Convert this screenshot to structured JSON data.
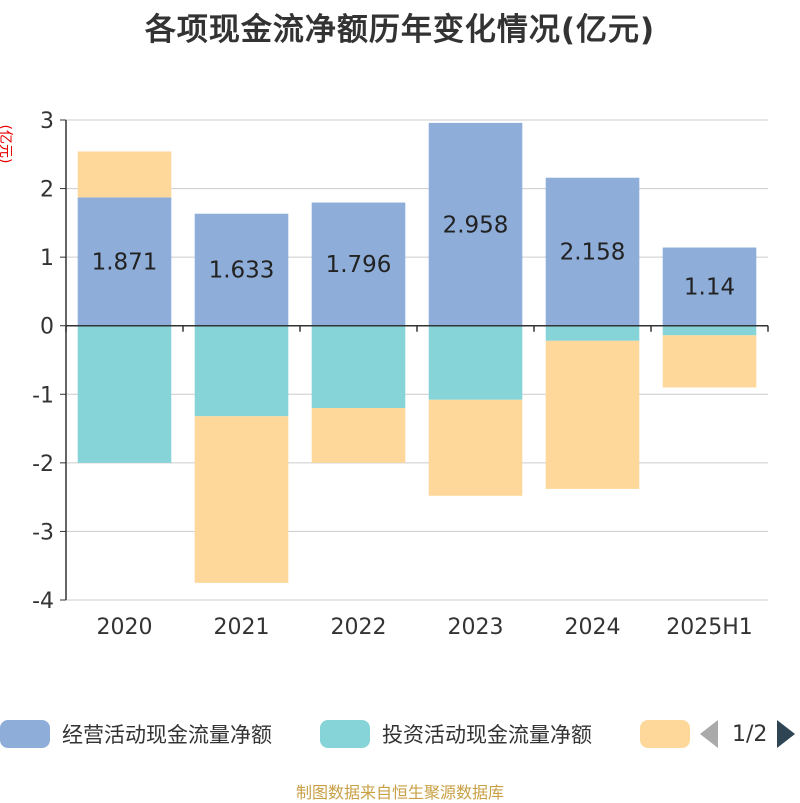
{
  "title": "各项现金流净额历年变化情况(亿元)",
  "unit_label": "(亿元)",
  "source": "制图数据来自恒生聚源数据库",
  "legend": {
    "items": [
      {
        "label": "经营活动现金流量净额",
        "color": "#8eadd9"
      },
      {
        "label": "投资活动现金流量净额",
        "color": "#86d4d8"
      },
      {
        "label": "",
        "color": "#fdd89a"
      }
    ],
    "page_text": "1/2"
  },
  "chart_data": {
    "type": "bar",
    "stacked": true,
    "categories": [
      "2020",
      "2021",
      "2022",
      "2023",
      "2024",
      "2025H1"
    ],
    "ylim": [
      -4,
      3
    ],
    "yticks": [
      3,
      2,
      1,
      0,
      -1,
      -2,
      -3,
      -4
    ],
    "grid": true,
    "legend_position": "bottom",
    "series": [
      {
        "name": "经营活动现金流量净额",
        "color": "#8eadd9",
        "values": [
          1.871,
          1.633,
          1.796,
          2.958,
          2.158,
          1.14
        ],
        "labels": [
          "1.871",
          "1.633",
          "1.796",
          "2.958",
          "2.158",
          "1.14"
        ]
      },
      {
        "name": "投资活动现金流量净额",
        "color": "#86d4d8",
        "values": [
          -2.0,
          -1.32,
          -1.2,
          -1.08,
          -0.22,
          -0.14
        ]
      },
      {
        "name": "",
        "color": "#fdd89a",
        "values": [
          0.67,
          -2.43,
          -0.8,
          -1.4,
          -2.16,
          -0.76
        ]
      }
    ]
  }
}
